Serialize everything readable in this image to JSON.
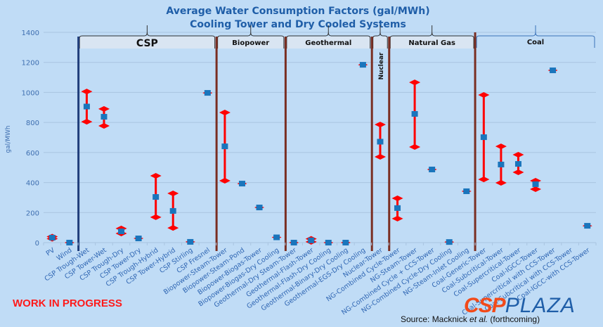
{
  "chart_data": {
    "type": "scatter",
    "title": "Average Water Consumption Factors (gal/MWh)",
    "subtitle": "Cooling Tower and Dry Cooled Systems",
    "ylabel": "gal/MWh",
    "xlabel": "",
    "ylim": [
      0,
      1400
    ],
    "yticks": [
      0,
      200,
      400,
      600,
      800,
      1000,
      1200,
      1400
    ],
    "grid": true,
    "legend": "none",
    "categories": [
      "PV",
      "Wind",
      "CSP Trough-Wet",
      "CSP Tower-Wet",
      "CSP Trough-Dry",
      "CSP Tower-Dry",
      "CSP Trough-Hybrid",
      "CSP Tower-Hybrid",
      "CSP Stirling",
      "CSP Fresnel",
      "Biopower-Steam-Tower",
      "Biopower-Steam-Pond",
      "Biopower-Biogas-Tower",
      "Biopower-Biogas-Dry Cooling",
      "Geothermal-Dry Steam-Tower",
      "Geothermal-Flash-Tower",
      "Geothermal-Flash-Dry Cooling",
      "Geothermal-Binary-Dry Cooling",
      "Geothermal-EGS-Dry Cooling",
      "Nuclear-Tower",
      "NG-Combined Cycle-Tower",
      "NG-Steam-Tower",
      "NG-Combined Cycle + CCS-Tower",
      "NG-Combined Cycle-Dry Cooling",
      "NG-Steam-Inlet Cooling",
      "Coal-Generic-Tower",
      "Coal-Subcritical-Tower",
      "Coal-Supercritical-Tower",
      "Coal-IGCC-Tower",
      "Coal-Supercritical with CCS-Tower",
      "Coal-Subcritical with CCS-Tower",
      "Coal-IGCC-with CCS-Tower"
    ],
    "series": [
      {
        "name": "Average",
        "values": [
          33,
          0,
          906,
          838,
          75,
          28,
          304,
          211,
          5,
          997,
          641,
          393,
          234,
          35,
          0,
          15,
          0,
          0,
          1184,
          672,
          230,
          857,
          487,
          4,
          342,
          702,
          520,
          524,
          389,
          1147,
          null,
          112
        ]
      },
      {
        "name": "Max",
        "values": [
          40,
          0,
          1006,
          890,
          94,
          28,
          445,
          328,
          5,
          997,
          866,
          393,
          234,
          35,
          0,
          25,
          0,
          0,
          1184,
          786,
          295,
          1067,
          487,
          4,
          342,
          983,
          641,
          585,
          412,
          1147,
          null,
          112
        ]
      },
      {
        "name": "Min",
        "values": [
          26,
          0,
          805,
          777,
          61,
          28,
          169,
          98,
          5,
          997,
          412,
          393,
          234,
          35,
          0,
          5,
          0,
          0,
          1184,
          571,
          160,
          637,
          487,
          4,
          342,
          421,
          398,
          468,
          356,
          1147,
          null,
          112
        ]
      }
    ],
    "groups": [
      {
        "label": "CSP",
        "start": 2,
        "end": 9
      },
      {
        "label": "Biopower",
        "start": 10,
        "end": 13
      },
      {
        "label": "Geothermal",
        "start": 14,
        "end": 18
      },
      {
        "label": "Nuclear",
        "start": 19,
        "end": 19
      },
      {
        "label": "Natural Gas",
        "start": 20,
        "end": 24
      },
      {
        "label": "Coal",
        "start": 25,
        "end": 31
      }
    ],
    "colors": {
      "point": "#1a75bc",
      "range": "#ff0000",
      "csp_divider": "#1f3d7a",
      "divider": "#7a2e22",
      "grid": "#a9c4e0"
    }
  },
  "annotations": {
    "work_in_progress": "WORK IN PROGRESS",
    "source_prefix": "Source: Macknick ",
    "source_italic": "et al.",
    "source_suffix": " (forthcoming)",
    "logo_csp": "CSP",
    "logo_plaza": "PLAZA"
  }
}
